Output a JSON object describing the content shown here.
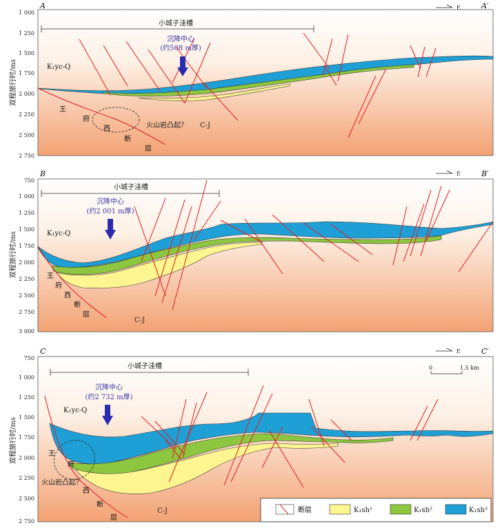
{
  "axis_label": "双程旅行时/ms",
  "compass_label": "E",
  "scale_bar": {
    "zero": "0",
    "length": "1.5 km"
  },
  "panels": [
    {
      "id": "A",
      "id_end": "A′",
      "ticks": [
        "1 000",
        "1 250",
        "1 500",
        "1 750",
        "2 000",
        "2 250",
        "2 500",
        "2 750"
      ],
      "depression": "小城子洼槽",
      "center_l1": "沉降中心",
      "center_l2": "(约508 m厚)",
      "unit_top": "K₁yc-Q",
      "fault_chars": [
        "王",
        "府",
        "西",
        "断",
        "层"
      ],
      "volcanic": "火山岩凸起？",
      "basement": "C-J"
    },
    {
      "id": "B",
      "id_end": "B′",
      "ticks": [
        "750",
        "1 000",
        "1 250",
        "1 500",
        "1 750",
        "2 000",
        "2 250",
        "2 500",
        "2 750",
        "3 000"
      ],
      "depression": "小城子洼槽",
      "center_l1": "沉降中心",
      "center_l2": "(约2 001 m厚)",
      "unit_top": "K₁yc-Q",
      "fault_chars": [
        "王",
        "府",
        "西",
        "断",
        "层"
      ],
      "basement": "C-J"
    },
    {
      "id": "C",
      "id_end": "C′",
      "ticks": [
        "750",
        "1 000",
        "1 250",
        "1 500",
        "1 750",
        "2 000",
        "2 250",
        "2 500",
        "2 750"
      ],
      "depression": "小城子洼槽",
      "center_l1": "沉降中心",
      "center_l2": "(约2 732 m厚)",
      "unit_top": "K₁yc-Q",
      "fault_chars": [
        "王",
        "府",
        "西",
        "断",
        "层"
      ],
      "volcanic": "火山岩凸起？",
      "basement": "C-J"
    }
  ],
  "legend": [
    {
      "label": "断层",
      "color": "#e31b23"
    },
    {
      "label": "K₁sh¹",
      "color": "#fdf58f"
    },
    {
      "label": "K₁sh²",
      "color": "#8dc63f"
    },
    {
      "label": "K₁sh³",
      "color": "#1ea0d6"
    }
  ]
}
